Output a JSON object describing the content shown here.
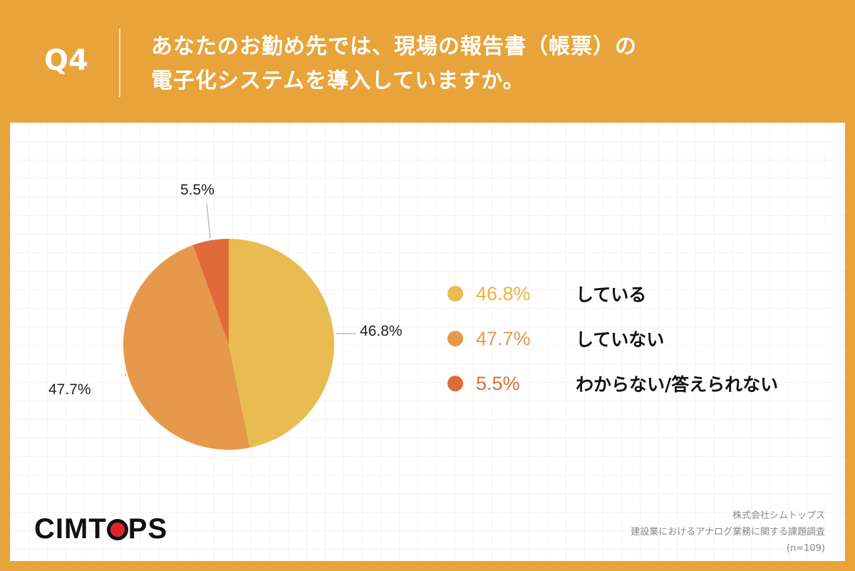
{
  "header": {
    "q": "Q4",
    "title_line1": "あなたのお勤め先では、現場の報告書（帳票）の",
    "title_line2": "電子化システムを導入していますか。"
  },
  "chart_data": {
    "type": "pie",
    "categories": [
      "している",
      "していない",
      "わからない/答えられない"
    ],
    "values": [
      46.8,
      47.7,
      5.5
    ],
    "labels": [
      "46.8%",
      "47.7%",
      "5.5%"
    ],
    "colors": [
      "#E8BC50",
      "#E6994A",
      "#E06A3A"
    ],
    "legend": "right"
  },
  "logo": {
    "text_a": "CIMT",
    "text_b": "PS"
  },
  "source": {
    "company": "株式会社シムトップス",
    "survey": "建設業におけるアナログ業務に関する課題調査",
    "n": "(n=109)"
  }
}
